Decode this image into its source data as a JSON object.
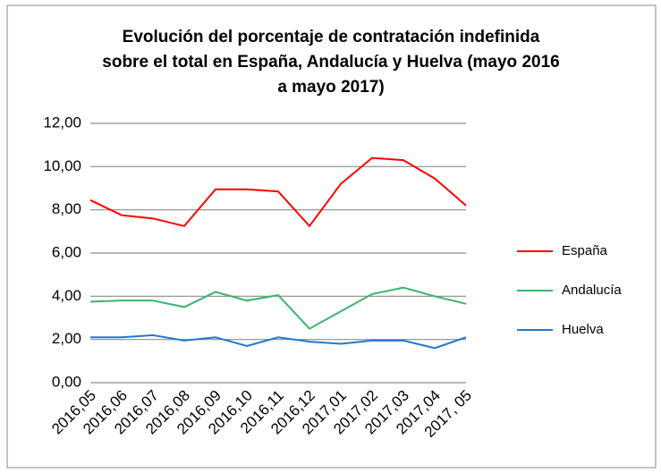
{
  "chart_data": {
    "type": "line",
    "title": [
      "Evolución del porcentaje de contratación indefinida",
      "sobre el total en España, Andalucía y Huelva (mayo 2016",
      "a mayo 2017)"
    ],
    "categories": [
      "2016,05",
      "2016,06",
      "2016,07",
      "2016,08",
      "2016,09",
      "2016,10",
      "2016,11",
      "2016,12",
      "2017,01",
      "2017,02",
      "2017,03",
      "2017,04",
      "2017, 05"
    ],
    "series": [
      {
        "name": "España",
        "color": "#ff0000",
        "values": [
          8.45,
          7.75,
          7.6,
          7.25,
          8.95,
          8.95,
          8.85,
          7.25,
          9.2,
          10.4,
          10.3,
          9.45,
          8.2
        ]
      },
      {
        "name": "Andalucía",
        "color": "#3cb371",
        "values": [
          3.75,
          3.8,
          3.8,
          3.5,
          4.2,
          3.8,
          4.05,
          2.5,
          3.3,
          4.1,
          4.4,
          4.0,
          3.65
        ]
      },
      {
        "name": "Huelva",
        "color": "#1f78d1",
        "values": [
          2.1,
          2.1,
          2.2,
          1.95,
          2.1,
          1.7,
          2.1,
          1.9,
          1.8,
          1.95,
          1.95,
          1.6,
          2.1
        ]
      }
    ],
    "ylim": [
      0,
      12
    ],
    "yticks": [
      {
        "value": 0,
        "label": "0,00"
      },
      {
        "value": 2,
        "label": "2,00"
      },
      {
        "value": 4,
        "label": "4,00"
      },
      {
        "value": 6,
        "label": "6,00"
      },
      {
        "value": 8,
        "label": "8,00"
      },
      {
        "value": 10,
        "label": "10,00"
      },
      {
        "value": 12,
        "label": "12,00"
      }
    ],
    "grid": true,
    "legend": "right"
  }
}
